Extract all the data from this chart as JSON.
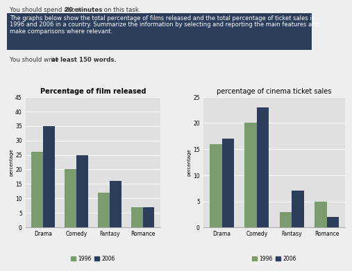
{
  "film_categories": [
    "Drama",
    "Comedy",
    "Fantasy",
    "Romance"
  ],
  "film_1996": [
    26,
    20,
    12,
    7
  ],
  "film_2006": [
    35,
    25,
    16,
    7
  ],
  "film_ylim": [
    0,
    45
  ],
  "film_yticks": [
    0,
    5,
    10,
    15,
    20,
    25,
    30,
    35,
    40,
    45
  ],
  "film_title": "Percentage of film released",
  "ticket_categories": [
    "Drama",
    "Comedy",
    "Fantasy",
    "Romance"
  ],
  "ticket_1996": [
    16,
    20,
    3,
    5
  ],
  "ticket_2006": [
    17,
    23,
    7,
    2
  ],
  "ticket_ylim": [
    0,
    25
  ],
  "ticket_yticks": [
    0,
    5,
    10,
    15,
    20,
    25
  ],
  "ticket_title": "percentage of cinema ticket sales",
  "color_1996": "#7a9b6b",
  "color_2006": "#2c3e5c",
  "ylabel": "percentage",
  "top_line1_normal": "You should spend about ",
  "top_line1_bold": "20 minutes",
  "top_line1_end": " on this task.",
  "highlight_line1": "The graphs below show the total percentage of films released and the total percentage of ticket sales in",
  "highlight_line2": "1996 and 2006 in a country. Summarize the information by selecting and reporting the main features and",
  "highlight_line3": "make comparisons where relevant.",
  "highlight_bg": "#2c3e5c",
  "highlight_text_color": "#ffffff",
  "bottom_normal": "You should write ",
  "bottom_bold": "at least 150 words.",
  "bg_color": "#eeeeee",
  "chart_bg": "#e0e0e0",
  "grid_color": "#ffffff"
}
